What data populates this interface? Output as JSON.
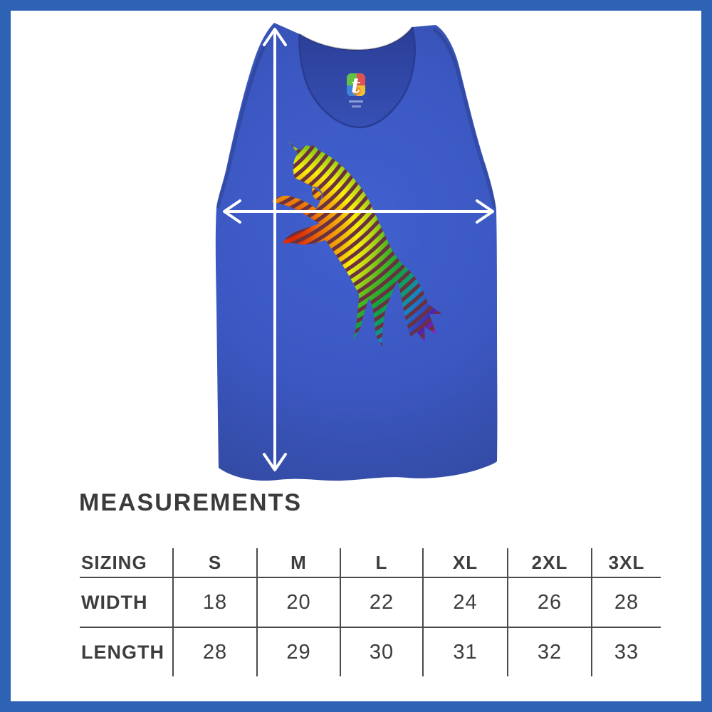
{
  "frame": {
    "border_color": "#2d62b5"
  },
  "heading": "MEASUREMENTS",
  "garment": {
    "shirt_color": "#3b57c1",
    "arrow_color": "#ffffff",
    "brand_label": {
      "letter": "t"
    }
  },
  "size_table": {
    "columns": [
      "SIZING",
      "S",
      "M",
      "L",
      "XL",
      "2XL",
      "3XL"
    ],
    "rows": [
      {
        "label": "WIDTH",
        "values": [
          "18",
          "20",
          "22",
          "24",
          "26",
          "28"
        ]
      },
      {
        "label": "LENGTH",
        "values": [
          "28",
          "29",
          "30",
          "31",
          "32",
          "33"
        ]
      }
    ]
  }
}
